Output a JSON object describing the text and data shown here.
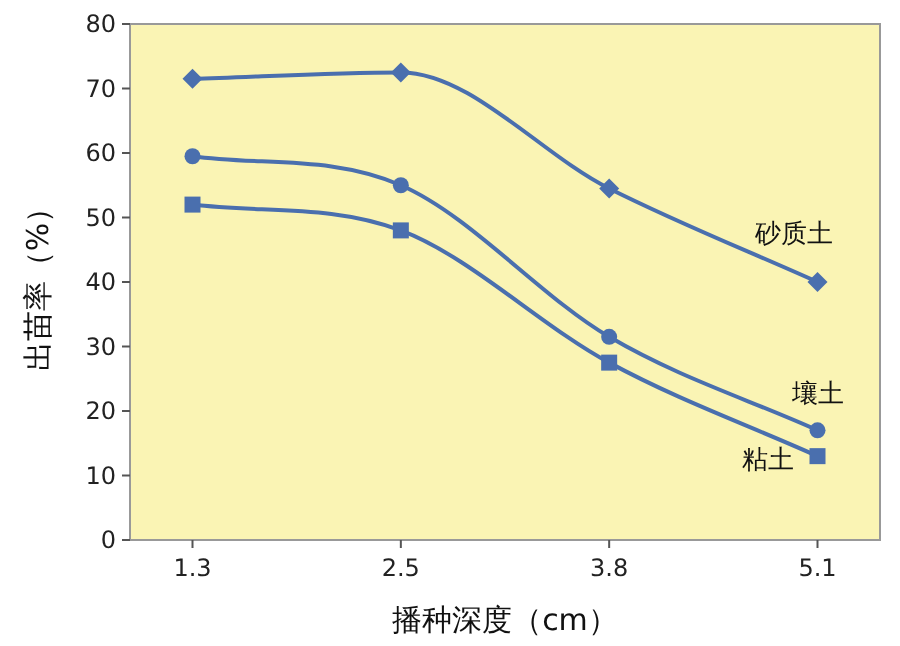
{
  "chart_data": {
    "type": "line",
    "xlabel": "播种深度（cm）",
    "ylabel": "出苗率（%）",
    "categories": [
      "1.3",
      "2.5",
      "3.8",
      "5.1"
    ],
    "ylim": [
      0,
      80
    ],
    "yticks": [
      0,
      10,
      20,
      30,
      40,
      50,
      60,
      70,
      80
    ],
    "grid": false,
    "series": [
      {
        "name": "砂质土",
        "color": "#4a6fae",
        "marker": "diamond",
        "values": [
          71.5,
          72.5,
          54.5,
          40
        ]
      },
      {
        "name": "壤土",
        "color": "#4a6fae",
        "marker": "circle",
        "values": [
          59.5,
          55,
          31.5,
          17
        ]
      },
      {
        "name": "粘土",
        "color": "#4a6fae",
        "marker": "square",
        "values": [
          52,
          48,
          27.5,
          13
        ]
      }
    ]
  }
}
